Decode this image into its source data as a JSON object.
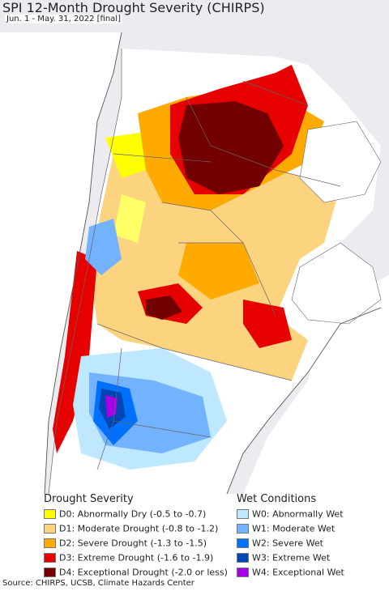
{
  "title": "SPI 12-Month Drought Severity (CHIRPS)",
  "subtitle": "Jun. 1 - May. 31, 2022 [final]",
  "legend": {
    "drought": {
      "heading": "Drought Severity",
      "items": [
        {
          "label": "D0: Abnormally Dry (-0.5 to -0.7)",
          "color": "#ffff00"
        },
        {
          "label": "D1: Moderate Drought (-0.8 to -1.2)",
          "color": "#fcd37f"
        },
        {
          "label": "D2: Severe Drought (-1.3 to -1.5)",
          "color": "#ffaa00"
        },
        {
          "label": "D3: Extreme Drought (-1.6 to -1.9)",
          "color": "#e60000"
        },
        {
          "label": "D4: Exceptional Drought (-2.0 or less)",
          "color": "#730000"
        }
      ]
    },
    "wet": {
      "heading": "Wet Conditions",
      "items": [
        {
          "label": "W0: Abnormally Wet",
          "color": "#bee8ff"
        },
        {
          "label": "W1: Moderate Wet",
          "color": "#73b2ff"
        },
        {
          "label": "W2: Severe Wet",
          "color": "#0070ff"
        },
        {
          "label": "W3: Extreme Wet",
          "color": "#0046b4"
        },
        {
          "label": "W4: Exceptional Wet",
          "color": "#a800e6"
        }
      ]
    }
  },
  "source": "Source: CHIRPS, UCSB, Climate Hazards Center"
}
